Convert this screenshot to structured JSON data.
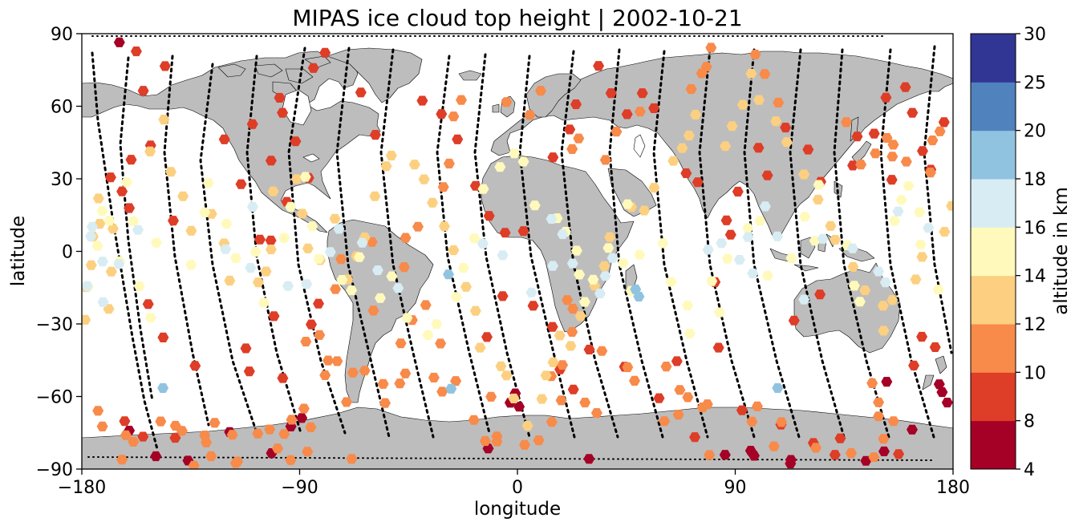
{
  "chart_data": {
    "type": "scatter",
    "title": "MIPAS ice cloud top height | 2002-10-21",
    "xlabel": "longitude",
    "ylabel": "latitude",
    "xlim": [
      -180,
      180
    ],
    "ylim": [
      -90,
      90
    ],
    "xticks": [
      -180,
      -90,
      0,
      90,
      180
    ],
    "yticks": [
      -90,
      -60,
      -30,
      0,
      30,
      60,
      90
    ],
    "xtick_labels": [
      "−180",
      "−90",
      "0",
      "90",
      "180"
    ],
    "ytick_labels": [
      "−90",
      "−60",
      "−30",
      "0",
      "30",
      "60",
      "90"
    ],
    "grid": false,
    "map": {
      "projection": "plate-carree",
      "land_color": "#bdbdbd",
      "coastline_color": "#000000"
    },
    "colorbar": {
      "label": "altitude in km",
      "boundaries": [
        4,
        8,
        10,
        12,
        14,
        16,
        18,
        20,
        25,
        30
      ],
      "tick_labels": [
        "4",
        "8",
        "10",
        "12",
        "14",
        "16",
        "18",
        "20",
        "25",
        "30"
      ],
      "colors": [
        "#a50026",
        "#d73027",
        "#f46d43",
        "#fdae61",
        "#fee090",
        "#e0f3f8",
        "#abd9e9",
        "#74add1",
        "#4575b4",
        "#313695"
      ],
      "display_colors": [
        "#a50026",
        "#de3d27",
        "#f88a4a",
        "#fcd080",
        "#fffabb",
        "#d8ecf3",
        "#90c3e0",
        "#5082bd",
        "#313695"
      ]
    },
    "tracks_note": "black dotted lines = satellite orbit tracks",
    "series": [
      {
        "color": "#a50026",
        "x": [
          -164.5,
          -89.1,
          -93.6,
          -118.9,
          -101.6,
          -3,
          -0.9,
          0.7,
          29.6,
          112.8,
          97.8,
          113,
          144,
          151.5,
          163.1,
          174.3,
          175.5,
          177.6,
          -149.4,
          -136.1,
          -160.4,
          -12.1,
          85.8,
          152.6,
          96.4
        ],
        "y": [
          86.4,
          -68.9,
          -72.4,
          -74.7,
          -83.4,
          -62.6,
          -58.7,
          -64.2,
          -85.8,
          -87.7,
          -84.5,
          -86.2,
          -86.6,
          -82.7,
          -73.7,
          -54.9,
          -58.2,
          -62.5,
          -84.7,
          -86.5,
          -74.1,
          -81.5,
          -84.1,
          -53.9,
          -82.4
        ]
      },
      {
        "color": "#de3d27",
        "x": [
          -157.5,
          -145.6,
          -154.6,
          -151.6,
          -159.6,
          -168.1,
          -163.4,
          -160.4,
          -142.2,
          -152.6,
          -146.4,
          -133.2,
          -106.4,
          -114.2,
          -121.1,
          -97.1,
          -98.3,
          -101.8,
          -109.5,
          -84.3,
          -79.5,
          -101.9,
          -95.3,
          -91.7,
          -86.3,
          -64.7,
          -58.7,
          -39.3,
          -31.4,
          -24.8,
          -17.3,
          -11.7,
          -5.1,
          2.5,
          14.7,
          24.2,
          21.6,
          33.5,
          38.7,
          45.3,
          51.6,
          56.4,
          69.7,
          74.5,
          88.1,
          86.4,
          91.1,
          103.3,
          99.6,
          110.8,
          120.1,
          125.3,
          140.4,
          138.6,
          152.3,
          147.4,
          154.7,
          170.8,
          167.4,
          163.2,
          160.3,
          176.3,
          14.5,
          29.7,
          44.3,
          58.5,
          73.3,
          92.8,
          108.9,
          122.3,
          131.2,
          157.5,
          133.4,
          -97,
          -112.2,
          -110.8,
          -12.6,
          -6.1,
          6.5,
          17.6,
          23.1,
          65.9,
          83.1,
          81.6,
          114.3,
          125,
          163.8,
          167.1,
          172.6,
          -100.6,
          -82.2,
          -154.7,
          -162.3,
          -141.4,
          -85.2
        ],
        "y": [
          82.7,
          76.6,
          66.4,
          43.8,
          37.9,
          30.6,
          24.8,
          17.9,
          12.7,
          -21.8,
          -35.6,
          -47.3,
          4.9,
          27.8,
          46.3,
          57.3,
          63.5,
          37.5,
          52.6,
          75.8,
          82.1,
          4.5,
          20.5,
          45.5,
          30.4,
          65.7,
          48.2,
          62.3,
          56.8,
          46.3,
          27.1,
          14.7,
          7.7,
          8.4,
          38.9,
          60.8,
          50.4,
          76.7,
          65.4,
          56.7,
          65.4,
          59.2,
          32.3,
          28.6,
          6.9,
          12.8,
          24.7,
          31.4,
          42.8,
          51.2,
          42.1,
          28.8,
          47.5,
          35.5,
          63.6,
          48.7,
          29.6,
          33.8,
          41.5,
          57.3,
          67.9,
          53.4,
          -31.2,
          -40.6,
          -47.7,
          -60.7,
          -76.8,
          -65.7,
          -71.6,
          -79.2,
          -84.1,
          -83.8,
          -77.3,
          -52.4,
          -40.1,
          -49.6,
          -35.4,
          -18.5,
          -22.5,
          -48.8,
          -57.1,
          -45.4,
          -39.8,
          -12.7,
          -28.6,
          -17.8,
          -47.2,
          -35.3,
          -39.6,
          -26.8,
          -21.6,
          -76.6,
          -70.2,
          -77.1,
          -30.2
        ]
      },
      {
        "color": "#f88a4a",
        "x": [
          -173.3,
          -171.5,
          -163.4,
          -161.8,
          -158.7,
          -147.4,
          -138.6,
          -128.6,
          -129.2,
          -116.4,
          -115.7,
          -107.3,
          -99.1,
          -93.7,
          -93.3,
          -86.8,
          -85.4,
          -79.5,
          -74.5,
          -70.6,
          -68.5,
          -54.7,
          -48.2,
          -43.5,
          -46.8,
          -46.2,
          -30.6,
          -28.2,
          -26.4,
          -23.2,
          -4.5,
          5.1,
          9.6,
          22.6,
          25.3,
          40.9,
          36.4,
          50.7,
          71.8,
          76.1,
          80,
          78.1,
          98.3,
          102.2,
          107.8,
          135.9,
          141.9,
          147.9,
          152.7,
          155.3,
          154.9,
          160.7,
          171.5,
          174.6,
          170.7,
          -75.2,
          -59.5,
          -72.9,
          -60.1,
          -41.1,
          -37.9,
          -31.8,
          -10.9,
          -8.5,
          8.8,
          14.2,
          18.1,
          27.9,
          32.8,
          45.5,
          61.5,
          67.1,
          76.5,
          79.3,
          96.9,
          109.1,
          123.3,
          137.9,
          147.3,
          -133.7,
          -126.6,
          -125.1,
          -117.8,
          -102.4,
          -96.4,
          -88.2,
          -87.4,
          -81.8,
          -78.2,
          -68,
          -63.1,
          -55.5,
          -48.6,
          -46.3,
          -34.5,
          -31.1,
          -25.5,
          -18,
          -13.3,
          -8.5,
          3,
          14,
          18.6,
          22.6,
          22.9,
          20.6,
          34.9,
          48.4,
          60.7,
          66.5,
          70.4,
          78.5,
          99.1,
          106,
          151.3,
          149.2,
          146.6,
          149.2,
          155.4,
          -141.3
        ],
        "y": [
          -65.9,
          -72.4,
          -86.1,
          -76,
          -78.7,
          -70.3,
          -74.2,
          -79,
          -76.1,
          -87.5,
          -86.9,
          -75.3,
          -81.5,
          -86.3,
          -69.6,
          -82.8,
          -72.7,
          -51.2,
          -45.4,
          -62.3,
          -85.8,
          -62.7,
          -38,
          -28.4,
          -6.5,
          5.6,
          26.6,
          36.3,
          55.8,
          62.6,
          61.7,
          56.4,
          66.4,
          42.3,
          46.7,
          49.5,
          37.8,
          57.8,
          67.1,
          73.6,
          84.2,
          76.3,
          81.4,
          73.3,
          61.5,
          53.4,
          35.9,
          40.5,
          46.9,
          44.1,
          39.2,
          37.1,
          45.9,
          49.6,
          32.6,
          -15.6,
          -24.5,
          -3.2,
          3.9,
          10.2,
          -22.2,
          -38.1,
          -60.1,
          -76.5,
          -78.1,
          -70.5,
          -61.6,
          -62.5,
          -66.8,
          -47.9,
          -47.6,
          -57.3,
          -64.5,
          -84.2,
          -70.4,
          -70.6,
          -81.2,
          -83.4,
          -85.1,
          -88.6,
          -84.7,
          -70.9,
          -75.8,
          -73.6,
          -75.5,
          -65,
          -37.3,
          -34.6,
          -45.1,
          -50.1,
          -49.3,
          -54.8,
          -54.6,
          -50.5,
          -52.2,
          -58,
          -53.6,
          -69.7,
          -78.4,
          -78.6,
          -80,
          -51.6,
          -47,
          -33.3,
          -23.7,
          -20.1,
          -41.2,
          -53.5,
          -70.2,
          -67.5,
          -60.3,
          -63.2,
          -64.1,
          -80.6,
          -77.5,
          -68.2,
          -54.5,
          -62.4,
          -70.2,
          -72.1
        ]
      },
      {
        "color": "#fcd080",
        "x": [
          -178.6,
          -178.2,
          -176.1,
          -175.4,
          -173.1,
          -172.6,
          -168.9,
          -167.8,
          -167.1,
          -151.8,
          -146.1,
          -143.2,
          -138.2,
          -134.8,
          -126.4,
          -121.2,
          -118.9,
          -107.1,
          -103.9,
          -101.8,
          -100.9,
          -91.2,
          -88.9,
          -86.6,
          -81.5,
          -75.4,
          -70.2,
          -66.5,
          -63.1,
          -58.9,
          -54.2,
          -52.1,
          -42.5,
          -38.6,
          -35.1,
          -30.2,
          -26.4,
          -21.2,
          -17.3,
          -15.4,
          -6.8,
          -4.5,
          -1.5,
          4.2,
          10.1,
          11.8,
          14.8,
          17.5,
          22,
          26.1,
          31.9,
          35.9,
          38.2,
          47.1,
          52.4,
          56.5,
          64.4,
          68.1,
          70.9,
          73.6,
          85.9,
          88.7,
          93.1,
          96.6,
          99.8,
          106.8,
          111.3,
          118.4,
          124.2,
          129.4,
          131.3,
          138.7,
          143.6,
          151.1,
          151.3,
          154.9,
          164.6,
          167.2,
          176.5,
          179.4
        ],
        "y": [
          -28.3,
          -14.8,
          -5.7,
          6.1,
          21.9,
          11.4,
          -23.8,
          -8.4,
          9.4,
          41.3,
          54.5,
          32.9,
          22.8,
          8.5,
          15.5,
          3.3,
          -12.1,
          -12.8,
          -8.3,
          0.8,
          24.8,
          29.9,
          15.6,
          1.2,
          -3.6,
          13.5,
          -11.6,
          -2,
          5.8,
          22.8,
          35.2,
          39.6,
          35.9,
          29.8,
          20.1,
          10.4,
          0.5,
          -14.7,
          -24.6,
          -39.8,
          -47.5,
          -51.3,
          -60.8,
          -72.1,
          -61,
          -51.3,
          -45.9,
          -34.8,
          -39.1,
          -26.8,
          -14.2,
          -6.1,
          5.9,
          18.3,
          16.9,
          26.3,
          37.4,
          42.7,
          47.9,
          56.5,
          43.5,
          51.8,
          60.6,
          73.5,
          62.6,
          53.8,
          45.2,
          31.8,
          21.4,
          10.5,
          4.8,
          -6.4,
          -16.1,
          -22.5,
          -32.8,
          -20.1,
          -11.6,
          -2.3,
          8.1,
          18.8
        ]
      },
      {
        "color": "#fffabb",
        "x": [
          -177.4,
          -173.5,
          -171.6,
          -168.6,
          -164.4,
          -161.5,
          -158.7,
          -156.2,
          -151.6,
          -149.2,
          -134.9,
          -129.2,
          -127.7,
          -120.2,
          -116.4,
          -108.2,
          -104.8,
          -96.4,
          -93.7,
          -87.6,
          -84.8,
          -82.1,
          -72.5,
          -68.6,
          -65.3,
          -56.7,
          -51.9,
          -45.6,
          -37,
          -33.4,
          -25.3,
          -22.3,
          -17.8,
          -14.1,
          -7.2,
          -1.3,
          2.5,
          7.2,
          16.4,
          19.9,
          24.5,
          25.6,
          27.8,
          31.3,
          37.6,
          43.7,
          45.5,
          47,
          50.5,
          60.1,
          63.5,
          70.3,
          71.2,
          80.3,
          83.5,
          86.8,
          95.2,
          100.2,
          103.4,
          113.2,
          118.7,
          122.9,
          124.5,
          136.3,
          139.2,
          141.5,
          155.8,
          158.7,
          161.6,
          166.1,
          166.6,
          173.9
        ],
        "y": [
          -14.5,
          2.3,
          16.7,
          12.7,
          -4.1,
          28.6,
          12.5,
          -14.4,
          -27.4,
          3.6,
          -5.6,
          16.1,
          28.3,
          11.4,
          -2.8,
          -0.2,
          -21.2,
          5.6,
          18.4,
          30.8,
          10.4,
          -3.1,
          -11.8,
          -16.1,
          -2.4,
          -19.3,
          -10.3,
          -27.5,
          -34.6,
          -30.1,
          -18.8,
          -6.8,
          5.4,
          25.8,
          34.9,
          40.5,
          37.1,
          19,
          13.7,
          8.1,
          0.3,
          -9.6,
          -20.9,
          -11.7,
          1.4,
          -4.9,
          19.5,
          -16.3,
          -1.4,
          3.4,
          -12.6,
          -22.4,
          -34,
          -12.3,
          -25.2,
          -3,
          9.6,
          12.6,
          -10,
          -2.8,
          14.3,
          4.4,
          27.5,
          2.5,
          -14.2,
          -20.8,
          12.6,
          21.3,
          27.1,
          16.2,
          2.8,
          -15.8
        ]
      },
      {
        "color": "#d8ecf3",
        "x": [
          -177.8,
          -176.3,
          -175.7,
          -171.4,
          -164.7,
          -156.8,
          -110.3,
          -109.4,
          -87.1,
          -77.3,
          -73.8,
          -64.1,
          -57.7,
          -49.3,
          -14.3,
          -6.1,
          14.1,
          18.7,
          22.8,
          34.1,
          36.3,
          39.3,
          78.8,
          84.3,
          91.8,
          95.3,
          97.2,
          102.4,
          107.4,
          118.4,
          126.2,
          138.5,
          149.2,
          152.1,
          157.3,
          169.8,
          -171.2,
          -120.6,
          -94.8,
          5.8,
          14.6
        ],
        "y": [
          -14.3,
          6.2,
          10.2,
          -4.2,
          -5.2,
          8.9,
          -6.8,
          18.4,
          -13.5,
          -0.3,
          9.3,
          3.6,
          -7.8,
          -15.2,
          3.2,
          -1.6,
          13.4,
          7.1,
          -5,
          -17.4,
          -10.2,
          -2.7,
          0.7,
          3.4,
          -3.5,
          5.9,
          -9.1,
          18.6,
          6.2,
          -19.9,
          5.2,
          1.2,
          -8.3,
          -12.8,
          16.5,
          9.7,
          -21,
          0.9,
          -14.3,
          -17,
          -6
        ]
      },
      {
        "color": "#90c3e0",
        "x": [
          -146.5,
          -28.5,
          -27.4,
          107.5,
          48.8,
          50.2
        ],
        "y": [
          -56.5,
          -9.5,
          -56.8,
          -56.5,
          -15.7,
          -18.7
        ]
      }
    ]
  }
}
